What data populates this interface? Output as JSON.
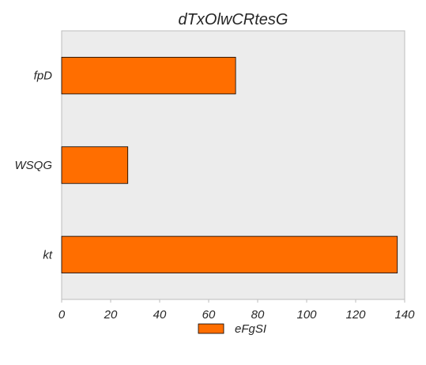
{
  "chart_data": {
    "type": "bar",
    "orientation": "horizontal",
    "title": "dTxOlwCRtesG",
    "xlabel": "",
    "ylabel": "",
    "categories": [
      "fpD",
      "WSQG",
      "kt"
    ],
    "series": [
      {
        "name": "eFgSI",
        "values": [
          71,
          27,
          137
        ],
        "color": "#ff6e00"
      }
    ],
    "xlim": [
      0,
      140
    ],
    "xticks": [
      0,
      20,
      40,
      60,
      80,
      100,
      120,
      140
    ],
    "grid": false,
    "legend": "bottom-center",
    "plot_background": "#ececec"
  }
}
